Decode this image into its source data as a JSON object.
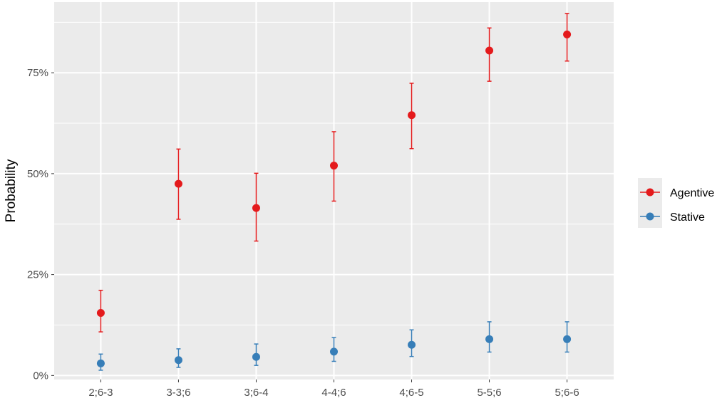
{
  "chart_data": {
    "type": "scatter",
    "title": "",
    "xlabel": "",
    "ylabel": "Probability",
    "categories": [
      "2;6-3",
      "3-3;6",
      "3;6-4",
      "4-4;6",
      "4;6-5",
      "5-5;6",
      "5;6-6"
    ],
    "ylim": [
      -0.01,
      0.925
    ],
    "yticks": [
      0,
      0.25,
      0.5,
      0.75
    ],
    "ytick_labels": [
      "0%",
      "25%",
      "50%",
      "75%"
    ],
    "grid": true,
    "legend_position": "right",
    "error_bars": true,
    "series": [
      {
        "name": "Agentive",
        "color": "#e41a1c",
        "values": [
          0.155,
          0.475,
          0.415,
          0.52,
          0.645,
          0.805,
          0.845
        ],
        "lower": [
          0.108,
          0.387,
          0.333,
          0.432,
          0.562,
          0.729,
          0.779
        ],
        "upper": [
          0.211,
          0.561,
          0.501,
          0.604,
          0.724,
          0.861,
          0.897
        ]
      },
      {
        "name": "Stative",
        "color": "#377eb8",
        "values": [
          0.03,
          0.038,
          0.046,
          0.059,
          0.076,
          0.09,
          0.09
        ],
        "lower": [
          0.013,
          0.02,
          0.025,
          0.035,
          0.047,
          0.058,
          0.058
        ],
        "upper": [
          0.053,
          0.066,
          0.078,
          0.094,
          0.113,
          0.133,
          0.133
        ]
      }
    ]
  }
}
